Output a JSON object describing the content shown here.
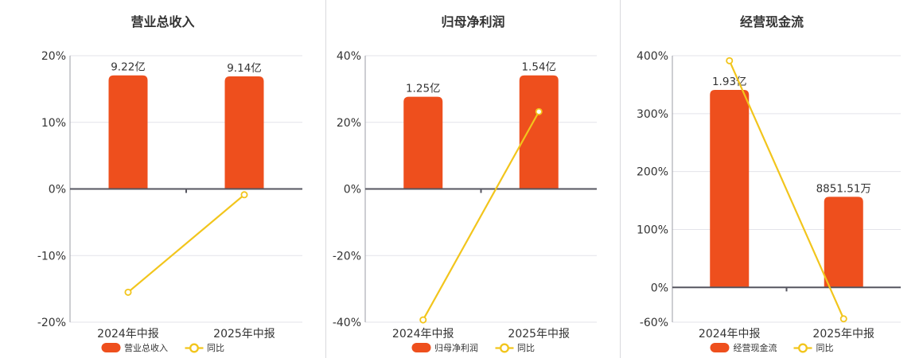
{
  "colors": {
    "bar": "#ee4f1d",
    "line": "#f2c51c",
    "title": "#333333",
    "axis_label": "#333333",
    "grid": "#e3e3ea",
    "zero_line": "#565660",
    "y_axis_line": "#9b9ca4",
    "divider": "#d9d9dd",
    "background": "#ffffff"
  },
  "chart_data": [
    {
      "type": "bar+line",
      "title": "营业总收入",
      "categories": [
        "2024年中报",
        "2025年中报"
      ],
      "bar_series": {
        "name": "营业总收入",
        "unit": "亿",
        "values": [
          9.22,
          9.14
        ],
        "labels": [
          "9.22亿",
          "9.14亿"
        ]
      },
      "line_series": {
        "name": "同比",
        "unit": "%",
        "values": [
          -15.5,
          -0.87
        ]
      },
      "y_axis": {
        "min": -20,
        "max": 20,
        "tick_values": [
          20,
          10,
          0,
          -10,
          -20
        ],
        "tick_labels": [
          "20%",
          "10%",
          "0%",
          "-10%",
          "-20%"
        ]
      },
      "legend_position": "bottom"
    },
    {
      "type": "bar+line",
      "title": "归母净利润",
      "categories": [
        "2024年中报",
        "2025年中报"
      ],
      "bar_series": {
        "name": "归母净利润",
        "unit": "亿",
        "values": [
          1.25,
          1.54
        ],
        "labels": [
          "1.25亿",
          "1.54亿"
        ]
      },
      "line_series": {
        "name": "同比",
        "unit": "%",
        "values": [
          -39.3,
          23.2
        ]
      },
      "y_axis": {
        "min": -40,
        "max": 40,
        "tick_values": [
          40,
          20,
          0,
          -20,
          -40
        ],
        "tick_labels": [
          "40%",
          "20%",
          "0%",
          "-20%",
          "-40%"
        ]
      },
      "legend_position": "bottom"
    },
    {
      "type": "bar+line",
      "title": "经营现金流",
      "categories": [
        "2024年中报",
        "2025年中报"
      ],
      "bar_series": {
        "name": "经营现金流",
        "unit": "亿",
        "values": [
          1.93,
          0.885151
        ],
        "labels": [
          "1.93亿",
          "8851.51万"
        ]
      },
      "line_series": {
        "name": "同比",
        "unit": "%",
        "values": [
          391.3,
          -54.14
        ]
      },
      "y_axis": {
        "min": -60,
        "max": 400,
        "tick_values": [
          400,
          300,
          200,
          100,
          0,
          -60
        ],
        "tick_labels": [
          "400%",
          "300%",
          "200%",
          "100%",
          "0%",
          "-60%"
        ]
      },
      "legend_position": "bottom"
    }
  ]
}
